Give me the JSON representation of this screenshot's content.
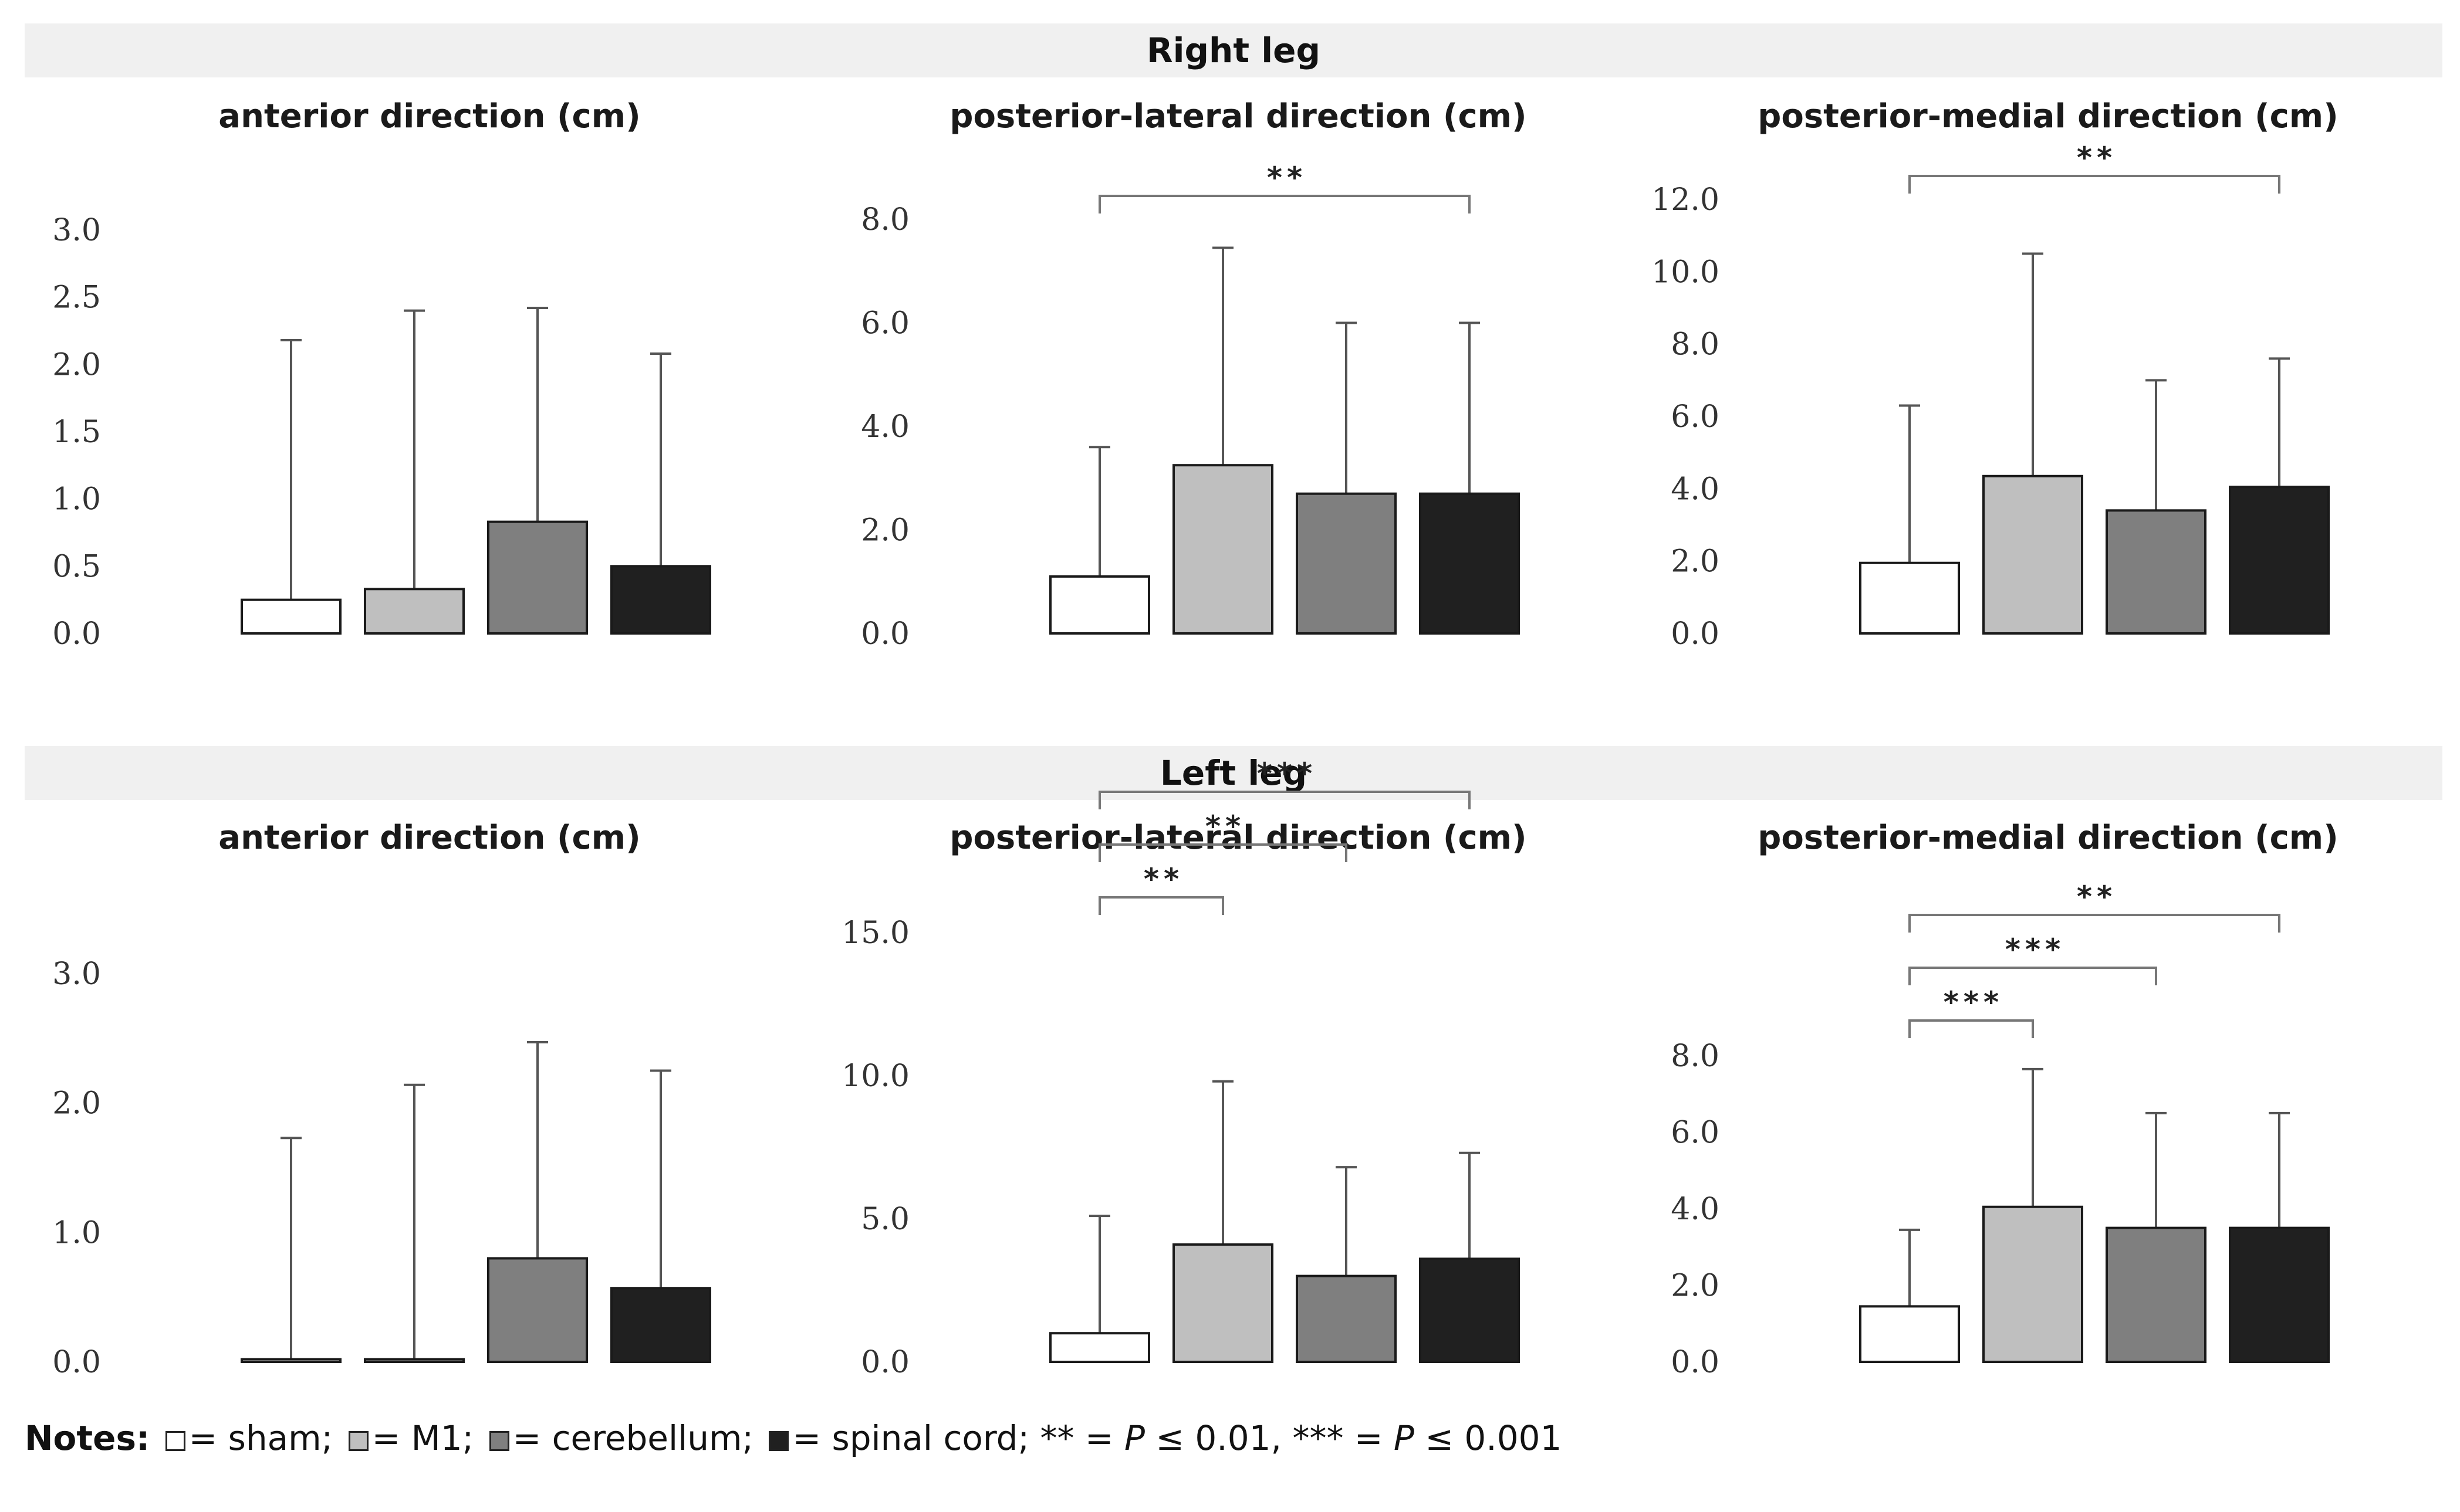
{
  "colors": {
    "sham": "#ffffff",
    "M1": "#bfbfbf",
    "cerebellum": "#7f7f7f",
    "spinal_cord": "#202020",
    "band": "#f0f0f0",
    "error": "#555555"
  },
  "sections": {
    "right": "Right leg",
    "left": "Left leg"
  },
  "notes": {
    "label": "Notes:",
    "sham": "= sham;",
    "m1": "= M1;",
    "cerebellum": "= cerebellum;",
    "spinal": "= spinal cord;",
    "sig2_stars": "** =",
    "sig2_p": "P",
    "sig2_val": "≤ 0.01,",
    "sig3_stars": "*** =",
    "sig3_p": "P",
    "sig3_val": "≤ 0.001"
  },
  "chart_data": [
    {
      "type": "bar",
      "leg": "Right leg",
      "title": "anterior direction (cm)",
      "categories": [
        "sham",
        "M1",
        "cerebellum",
        "spinal cord"
      ],
      "values": [
        0.25,
        0.33,
        0.83,
        0.5
      ],
      "error_upper": [
        2.18,
        2.4,
        2.42,
        2.08
      ],
      "ylim": [
        0,
        3.0
      ],
      "yticks": [
        "0.0",
        "0.5",
        "1.0",
        "1.5",
        "2.0",
        "2.5",
        "3.0"
      ],
      "yticks_values": [
        0,
        0.5,
        1.0,
        1.5,
        2.0,
        2.5,
        3.0
      ],
      "significance": []
    },
    {
      "type": "bar",
      "leg": "Right leg",
      "title": "posterior-lateral direction (cm)",
      "categories": [
        "sham",
        "M1",
        "cerebellum",
        "spinal cord"
      ],
      "values": [
        1.1,
        3.25,
        2.7,
        2.7
      ],
      "error_upper": [
        3.6,
        7.45,
        6.0,
        6.0
      ],
      "ylim": [
        0,
        8.0
      ],
      "yticks": [
        "0.0",
        "2.0",
        "4.0",
        "6.0",
        "8.0"
      ],
      "yticks_values": [
        0,
        2.0,
        4.0,
        6.0,
        8.0
      ],
      "significance": [
        {
          "from": 0,
          "to": 3,
          "label": "**"
        }
      ]
    },
    {
      "type": "bar",
      "leg": "Right leg",
      "title": "posterior-medial direction (cm)",
      "categories": [
        "sham",
        "M1",
        "cerebellum",
        "spinal cord"
      ],
      "values": [
        1.95,
        4.35,
        3.4,
        4.05
      ],
      "error_upper": [
        6.3,
        10.5,
        7.0,
        7.6
      ],
      "ylim": [
        0,
        12.0
      ],
      "yticks": [
        "0.0",
        "2.0",
        "4.0",
        "6.0",
        "8.0",
        "10.0",
        "12.0"
      ],
      "yticks_values": [
        0,
        2.0,
        4.0,
        6.0,
        8.0,
        10.0,
        12.0
      ],
      "significance": [
        {
          "from": 0,
          "to": 3,
          "label": "**"
        }
      ]
    },
    {
      "type": "bar",
      "leg": "Left leg",
      "title": "anterior direction (cm)",
      "categories": [
        "sham",
        "M1",
        "cerebellum",
        "spinal cord"
      ],
      "values": [
        0.02,
        0.02,
        0.8,
        0.57
      ],
      "error_upper": [
        1.73,
        2.14,
        2.47,
        2.25
      ],
      "ylim": [
        0,
        3.0
      ],
      "yticks": [
        "0.0",
        "1.0",
        "2.0",
        "3.0"
      ],
      "yticks_values": [
        0,
        1.0,
        2.0,
        3.0
      ],
      "significance": []
    },
    {
      "type": "bar",
      "leg": "Left leg",
      "title": "posterior-lateral direction (cm)",
      "categories": [
        "sham",
        "M1",
        "cerebellum",
        "spinal cord"
      ],
      "values": [
        1.0,
        4.1,
        3.0,
        3.6
      ],
      "error_upper": [
        5.1,
        9.8,
        6.8,
        7.3
      ],
      "ylim": [
        0,
        15.0
      ],
      "yticks": [
        "0.0",
        "5.0",
        "10.0",
        "15.0"
      ],
      "yticks_values": [
        0,
        5.0,
        10.0,
        15.0
      ],
      "significance": [
        {
          "from": 0,
          "to": 1,
          "label": "**"
        },
        {
          "from": 0,
          "to": 2,
          "label": "**"
        },
        {
          "from": 0,
          "to": 3,
          "label": "***"
        }
      ]
    },
    {
      "type": "bar",
      "leg": "Left leg",
      "title": "posterior-medial direction (cm)",
      "categories": [
        "sham",
        "M1",
        "cerebellum",
        "spinal cord"
      ],
      "values": [
        1.45,
        4.05,
        3.5,
        3.5
      ],
      "error_upper": [
        3.45,
        7.65,
        6.5,
        6.5
      ],
      "ylim": [
        0,
        8.0
      ],
      "yticks": [
        "0.0",
        "2.0",
        "4.0",
        "6.0",
        "8.0"
      ],
      "yticks_values": [
        0,
        2.0,
        4.0,
        6.0,
        8.0
      ],
      "significance": [
        {
          "from": 0,
          "to": 1,
          "label": "***"
        },
        {
          "from": 0,
          "to": 2,
          "label": "***"
        },
        {
          "from": 0,
          "to": 3,
          "label": "**"
        }
      ]
    }
  ]
}
